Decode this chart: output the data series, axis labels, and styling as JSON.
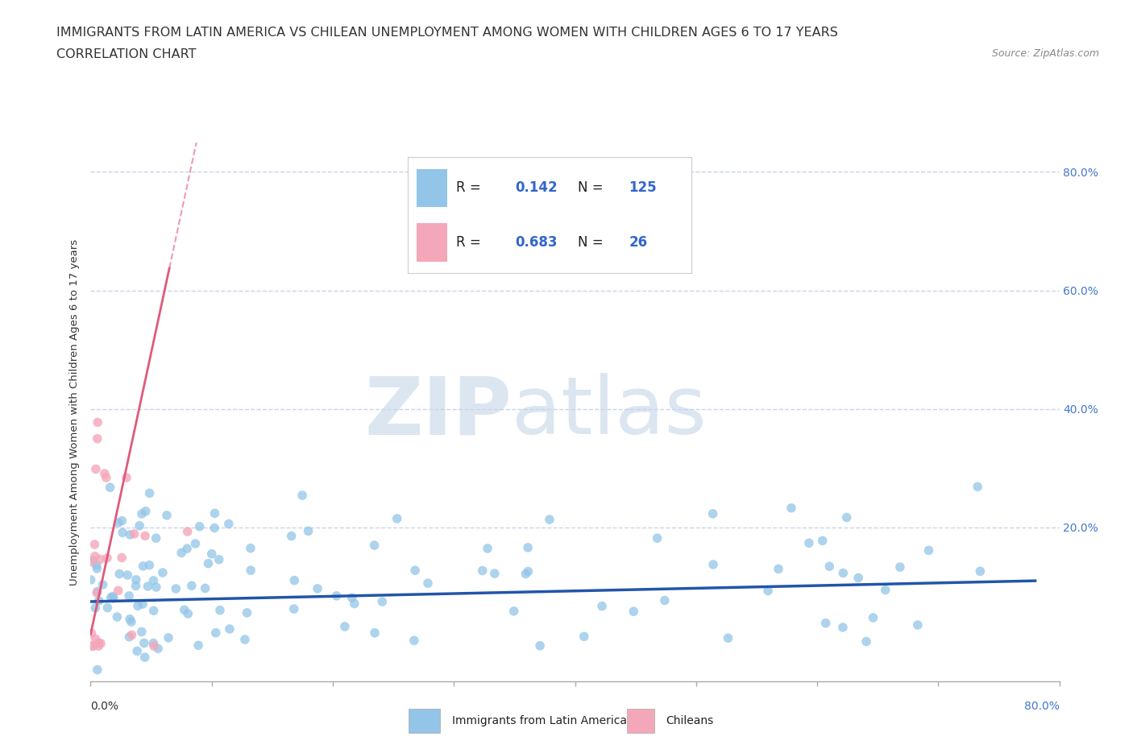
{
  "title_line1": "IMMIGRANTS FROM LATIN AMERICA VS CHILEAN UNEMPLOYMENT AMONG WOMEN WITH CHILDREN AGES 6 TO 17 YEARS",
  "title_line2": "CORRELATION CHART",
  "source_text": "Source: ZipAtlas.com",
  "ylabel": "Unemployment Among Women with Children Ages 6 to 17 years",
  "xlim": [
    0.0,
    0.8
  ],
  "ylim": [
    0.0,
    0.85
  ],
  "blue_color": "#92C5E8",
  "blue_line_color": "#2255AA",
  "pink_color": "#F4A7B9",
  "pink_line_color": "#E05A7A",
  "legend_R_blue": "0.142",
  "legend_N_blue": "125",
  "legend_R_pink": "0.683",
  "legend_N_pink": "26",
  "watermark_ZIP": "ZIP",
  "watermark_atlas": "atlas",
  "background_color": "#ffffff",
  "grid_color": "#c8d4e8",
  "title_fontsize": 11.5,
  "axis_label_fontsize": 9.5,
  "tick_fontsize": 10,
  "legend_fontsize": 12,
  "blue_line_intercept": 0.075,
  "blue_line_slope": 0.045,
  "pink_line_intercept": 0.02,
  "pink_line_slope": 9.5
}
